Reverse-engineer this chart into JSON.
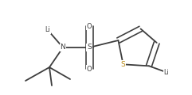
{
  "bg_color": "#ffffff",
  "line_color": "#3d3d3d",
  "atom_colors": {
    "N": "#3d3d3d",
    "S_sulfone": "#3d3d3d",
    "S_thiophene": "#b8860b",
    "Li": "#3d3d3d",
    "O": "#3d3d3d",
    "C": "#3d3d3d"
  },
  "line_width": 1.3,
  "font_size_atom": 6.5,
  "font_size_li": 5.8,
  "font_size_o": 6.0
}
